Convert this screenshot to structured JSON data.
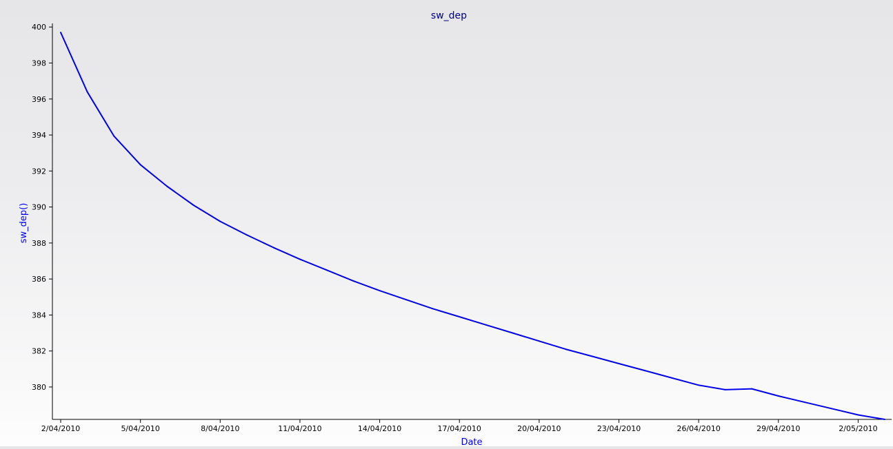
{
  "chart_data": {
    "type": "line",
    "title": "sw_dep",
    "xlabel": "Date",
    "ylabel": "sw_dep()",
    "x_tick_labels": [
      "2/04/2010",
      "5/04/2010",
      "8/04/2010",
      "11/04/2010",
      "14/04/2010",
      "17/04/2010",
      "20/04/2010",
      "23/04/2010",
      "26/04/2010",
      "29/04/2010",
      "2/05/2010"
    ],
    "y_tick_labels": [
      "380",
      "382",
      "384",
      "386",
      "388",
      "390",
      "392",
      "394",
      "396",
      "398",
      "400"
    ],
    "xlim": [
      "2/04/2010",
      "3/05/2010"
    ],
    "ylim": [
      378.2,
      400.2
    ],
    "grid": false,
    "series": [
      {
        "color": "#0000ee",
        "x": [
          "2/04/2010",
          "3/04/2010",
          "4/04/2010",
          "5/04/2010",
          "6/04/2010",
          "7/04/2010",
          "8/04/2010",
          "9/04/2010",
          "10/04/2010",
          "11/04/2010",
          "12/04/2010",
          "13/04/2010",
          "14/04/2010",
          "15/04/2010",
          "16/04/2010",
          "17/04/2010",
          "18/04/2010",
          "19/04/2010",
          "20/04/2010",
          "21/04/2010",
          "22/04/2010",
          "23/04/2010",
          "24/04/2010",
          "25/04/2010",
          "26/04/2010",
          "27/04/2010",
          "28/04/2010",
          "29/04/2010",
          "30/04/2010",
          "1/05/2010",
          "2/05/2010",
          "3/05/2010"
        ],
        "values": [
          399.7,
          396.4,
          393.95,
          392.35,
          391.15,
          390.1,
          389.2,
          388.45,
          387.75,
          387.1,
          386.5,
          385.9,
          385.35,
          384.85,
          384.35,
          383.9,
          383.45,
          383.0,
          382.55,
          382.1,
          381.7,
          381.3,
          380.9,
          380.5,
          380.1,
          379.85,
          379.9,
          379.5,
          379.15,
          378.8,
          378.45,
          378.2
        ]
      }
    ],
    "colors": {
      "title": "#000080",
      "axis_title": "#0000ff",
      "axis": "#000000"
    }
  }
}
